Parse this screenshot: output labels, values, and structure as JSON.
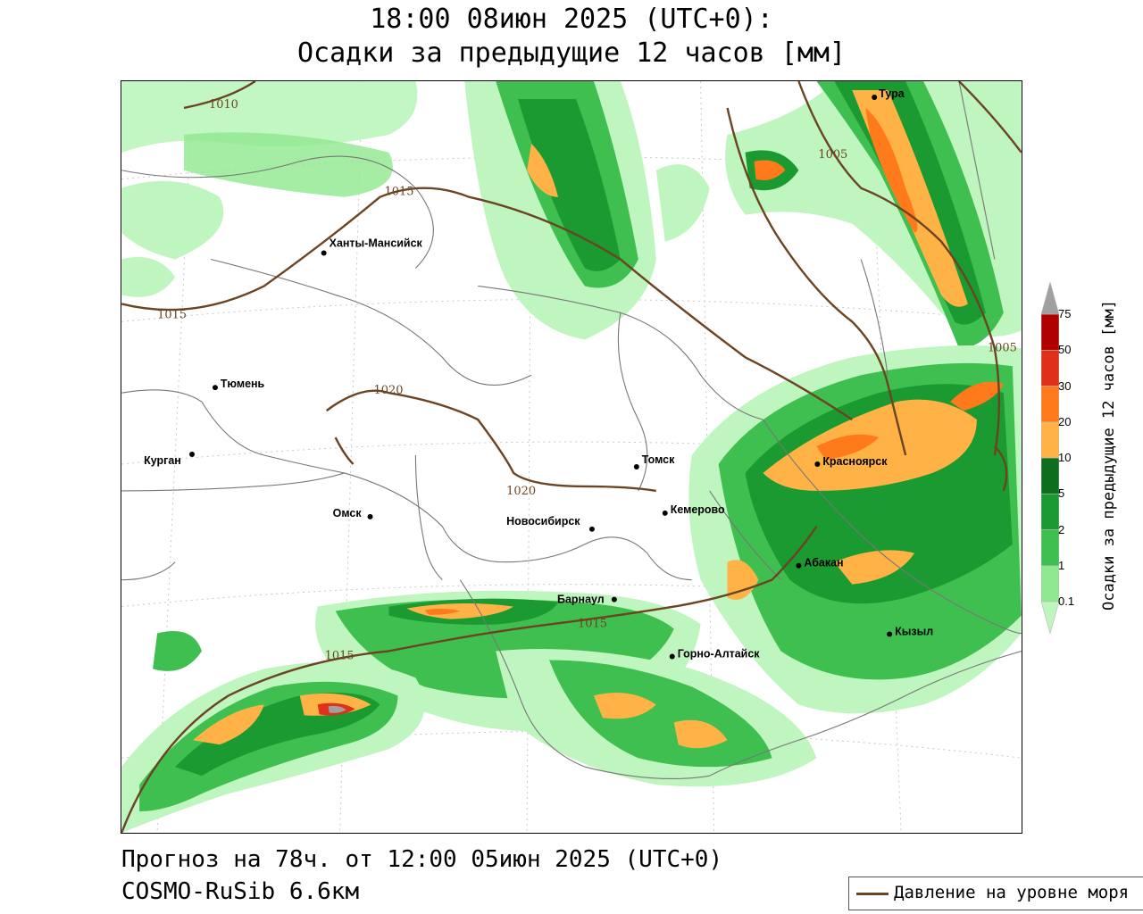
{
  "title": {
    "line1": "18:00 08июн 2025 (UTC+0):",
    "line2": "Осадки за предыдущие 12 часов [мм]"
  },
  "footer": {
    "forecast": "Прогноз на 78ч. от 12:00 05июн 2025 (UTC+0)",
    "model": "COSMO-RuSib 6.6км"
  },
  "legend": {
    "pressure_label": "Давление на уровне моря",
    "pressure_color": "#6b4423"
  },
  "colorbar": {
    "title": "Осадки за предыдущие 12 часов [мм]",
    "levels": [
      "0.1",
      "1",
      "2",
      "5",
      "10",
      "20",
      "30",
      "50",
      "75"
    ],
    "colors": [
      "#bff5bf",
      "#8ee88e",
      "#3fbf4f",
      "#1a9a30",
      "#0d6e1e",
      "#ffb347",
      "#ff7a1a",
      "#e0301a",
      "#b00000",
      "#a0a0a0"
    ]
  },
  "cities": [
    {
      "name": "Тура"
    },
    {
      "name": "Ханты-Мансийск"
    },
    {
      "name": "Тюмень"
    },
    {
      "name": "Курган"
    },
    {
      "name": "Омск"
    },
    {
      "name": "Томск"
    },
    {
      "name": "Новосибирск"
    },
    {
      "name": "Кемерово"
    },
    {
      "name": "Красноярск"
    },
    {
      "name": "Абакан"
    },
    {
      "name": "Барнаул"
    },
    {
      "name": "Горно-Алтайск"
    },
    {
      "name": "Кызыл"
    }
  ],
  "isobars": [
    "1010",
    "1015",
    "1015",
    "1020",
    "1020",
    "1015",
    "1015",
    "1005",
    "1005"
  ]
}
